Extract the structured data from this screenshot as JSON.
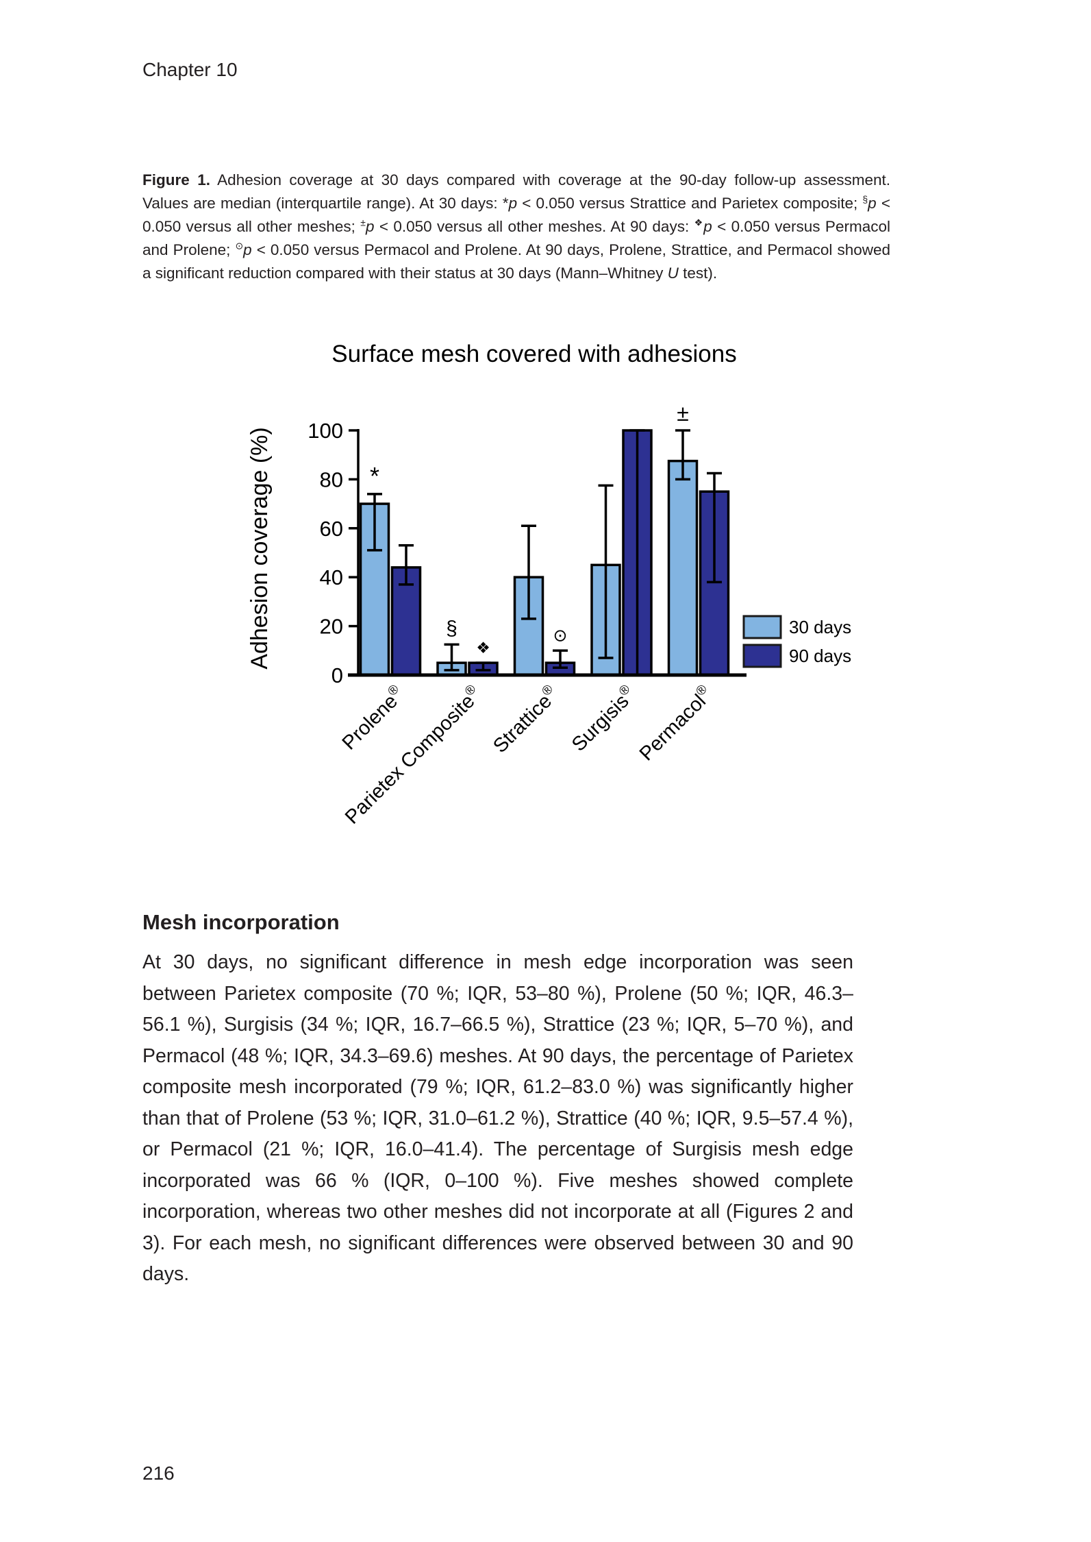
{
  "page": {
    "chapter_header": "Chapter 10",
    "page_number": "216"
  },
  "figure_caption": {
    "segments": [
      {
        "t": "Figure 1.",
        "b": 1
      },
      {
        "t": " Adhesion coverage at 30 days compared with coverage at the 90-day follow-up assessment. Values are median (interquartile range). At 30 days: *"
      },
      {
        "t": "p",
        "i": 1
      },
      {
        "t": " < 0.050 versus Strattice and Parietex composite; "
      },
      {
        "t": "§",
        "sup": 1
      },
      {
        "t": "p",
        "i": 1
      },
      {
        "t": " < 0.050 versus all other meshes; "
      },
      {
        "t": "±",
        "sup": 1
      },
      {
        "t": "p",
        "i": 1
      },
      {
        "t": " < 0.050 versus all other meshes. At 90 days: "
      },
      {
        "t": "❖",
        "sup": 1
      },
      {
        "t": "p",
        "i": 1
      },
      {
        "t": " < 0.050 versus Permacol and Prolene; "
      },
      {
        "t": "⊙",
        "sup": 1
      },
      {
        "t": "p",
        "i": 1
      },
      {
        "t": " < 0.050 versus Permacol and Prolene. At 90 days, Prolene, Strattice, and Permacol showed a significant reduction compared with their status at 30 days (Mann–Whitney "
      },
      {
        "t": "U",
        "i": 1
      },
      {
        "t": " test)."
      }
    ]
  },
  "chart_data": {
    "type": "bar",
    "title": "Surface mesh covered with adhesions",
    "xlabel": "",
    "ylabel": "Adhesion coverage (%)",
    "ylim": [
      0,
      100
    ],
    "yticks": [
      0,
      20,
      40,
      60,
      80,
      100
    ],
    "grid": "off",
    "legend_position": "right",
    "categories": [
      "Prolene®",
      "Parietex Composite®",
      "Strattice®",
      "Surgisis®",
      "Permacol®"
    ],
    "legend": [
      {
        "label": "30 days",
        "color": "#82b4e1"
      },
      {
        "label": "90 days",
        "color": "#2d3192"
      }
    ],
    "series": [
      {
        "name": "30 days",
        "color": "#82b4e1",
        "values": [
          70,
          5,
          40,
          45,
          87.5
        ],
        "whisker_low": [
          51,
          2,
          23,
          7,
          80
        ],
        "whisker_high": [
          74,
          12.5,
          61,
          77.5,
          100
        ],
        "annotations": [
          "*",
          "§",
          "",
          "",
          "±"
        ]
      },
      {
        "name": "90 days",
        "color": "#2d3192",
        "values": [
          44,
          5,
          5,
          100,
          75
        ],
        "whisker_low": [
          37,
          2,
          3,
          0,
          38
        ],
        "whisker_high": [
          53,
          5,
          10,
          100,
          82.5
        ],
        "annotations": [
          "",
          "❖",
          "⊙",
          "",
          ""
        ]
      }
    ]
  },
  "section": {
    "heading": "Mesh incorporation",
    "paragraph": "At 30 days, no significant difference in mesh edge incorporation was seen between Parietex composite (70 %; IQR, 53–80 %), Prolene (50 %; IQR, 46.3–56.1 %), Surgisis (34 %; IQR, 16.7–66.5 %), Strattice (23 %; IQR, 5–70 %), and Permacol (48 %; IQR, 34.3–69.6) meshes. At 90 days, the percentage of Parietex composite mesh incorporated (79 %; IQR, 61.2–83.0 %) was significantly higher than that of Prolene (53 %; IQR, 31.0–61.2 %), Strattice (40 %; IQR, 9.5–57.4 %), or Permacol (21 %; IQR, 16.0–41.4). The percentage of Surgisis mesh edge incorporated was 66 % (IQR, 0–100 %). Five meshes showed complete incorporation, whereas two other meshes did not incorporate at all (Figures 2 and 3). For each mesh, no significant differences were observed between 30 and 90 days."
  }
}
